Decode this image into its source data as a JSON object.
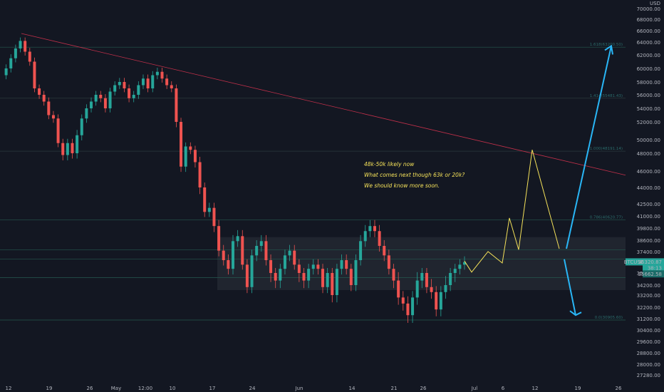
{
  "chart_data": {
    "type": "line",
    "symbol": "BTCUSD",
    "currency": "USD",
    "y_axis": {
      "min": 26500,
      "max": 70500,
      "ticks": [
        "70000.00",
        "68000.00",
        "66000.00",
        "64000.00",
        "62000.00",
        "60000.00",
        "58000.00",
        "56000.00",
        "54000.00",
        "52000.00",
        "50000.00",
        "48000.00",
        "46000.00",
        "44000.00",
        "42500.00",
        "41000.00",
        "39800.00",
        "38600.00",
        "37400.00",
        "36200.00",
        "35000.00",
        "34200.00",
        "33200.00",
        "32200.00",
        "31200.00",
        "30400.00",
        "29600.00",
        "28800.00",
        "28000.00",
        "27280.00"
      ],
      "tick_values": [
        70000,
        68000,
        66000,
        64000,
        62000,
        60000,
        58000,
        56000,
        54000,
        52000,
        50000,
        48000,
        46000,
        44000,
        42500,
        41000,
        39800,
        38600,
        37400,
        36200,
        35000,
        34200,
        33200,
        32200,
        31200,
        30400,
        29600,
        28800,
        28000,
        27280
      ]
    },
    "x_axis": {
      "tick_labels": [
        "12",
        "19",
        "26",
        "May",
        "12:00",
        "10",
        "17",
        "24",
        "Jun",
        "14",
        "21",
        "26",
        "Jul",
        "6",
        "12",
        "19",
        "26"
      ]
    },
    "price_series": {
      "name": "BTCUSD",
      "values": [
        59000,
        60000,
        61500,
        63000,
        64200,
        62500,
        61000,
        57000,
        56000,
        55000,
        53000,
        52500,
        49500,
        47800,
        49500,
        48000,
        50500,
        52500,
        54000,
        55000,
        56000,
        55500,
        54000,
        56500,
        57500,
        58000,
        57000,
        55500,
        56000,
        57500,
        58500,
        57000,
        59000,
        59500,
        58500,
        57500,
        57000,
        52000,
        46500,
        49000,
        48500,
        47000,
        44000,
        41500,
        42000,
        40000,
        37500,
        36500,
        35500,
        38500,
        39000,
        36000,
        34000,
        37000,
        38000,
        38500,
        36500,
        35000,
        34500,
        35500,
        37000,
        37500,
        36000,
        35000,
        34500,
        35500,
        36000,
        35500,
        34000,
        35000,
        33200,
        35500,
        36500,
        35500,
        34200,
        36500,
        38500,
        39500,
        40000,
        39500,
        38000,
        37000,
        35500,
        34500,
        33000,
        32500,
        31500,
        33000,
        34500,
        35000,
        34000,
        33500,
        32000,
        33500,
        34200,
        35000,
        35500,
        36000,
        36300
      ],
      "color": "#26a69a"
    },
    "projection_yellow": {
      "values": [
        36400,
        35100,
        37400,
        36200,
        40800,
        37600,
        48500,
        37700
      ],
      "color": "#f5e25a"
    },
    "projection_up": {
      "from": 37700,
      "to": 63400,
      "color": "#29b6f6"
    },
    "projection_down": {
      "from": 36600,
      "to": 31500,
      "color": "#29b6f6"
    },
    "trendline": {
      "from": 65500,
      "to": 45500,
      "color": "#c2304a"
    },
    "range_box": {
      "top": 38900,
      "bottom": 33700
    },
    "levels": [
      {
        "value": 63200,
        "label": "1.618(63200.50)"
      },
      {
        "value": 55500,
        "label": "1.414(55481.43)"
      },
      {
        "value": 48300,
        "label": "1.000(48191.14)"
      },
      {
        "value": 40600,
        "label": "0.786(40620.77)"
      },
      {
        "value": 37600,
        "label": ""
      },
      {
        "value": 36600,
        "label": ""
      },
      {
        "value": 34700,
        "label": ""
      },
      {
        "value": 31100,
        "label": "0.0(30905.60)"
      }
    ],
    "annotations": [
      "48k-50k likely now",
      "What comes next though 63k or 20k?",
      "We should know more soon."
    ],
    "price_tags": {
      "last": "36320.87",
      "countdown": "38:13",
      "level": "35662.58"
    }
  }
}
